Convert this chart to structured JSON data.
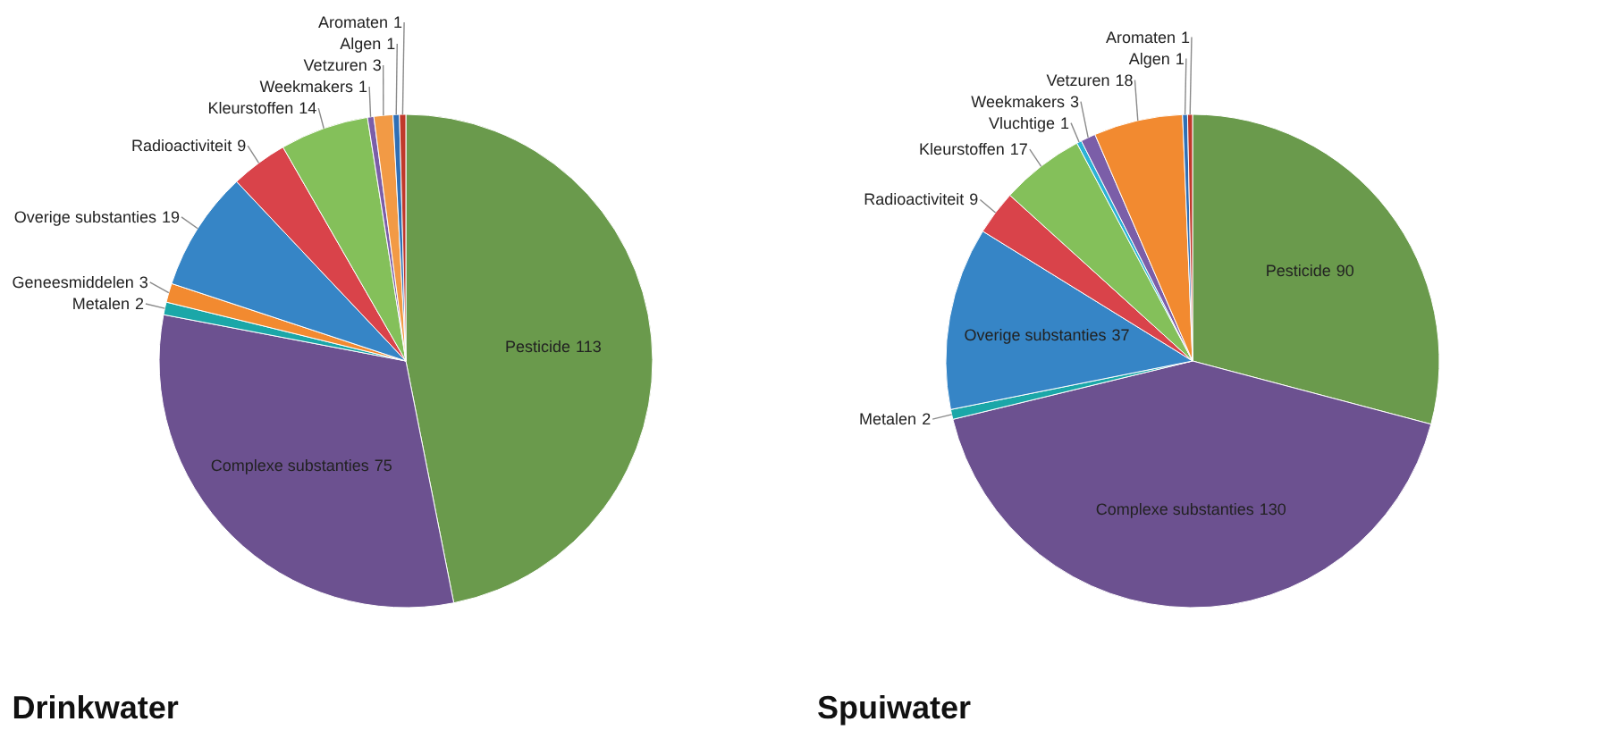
{
  "chart_data": [
    {
      "type": "pie",
      "title": "Drinkwater",
      "categories": [
        "Pesticide",
        "Complexe substanties",
        "Metalen",
        "Geneesmiddelen",
        "Overige substanties",
        "Radioactiviteit",
        "Kleurstoffen",
        "Weekmakers",
        "Vetzuren",
        "Algen",
        "Aromaten"
      ],
      "values": [
        113,
        75,
        2,
        3,
        19,
        9,
        14,
        1,
        3,
        1,
        1
      ],
      "colors": [
        "#6a9a4c",
        "#6c5190",
        "#1ba7a8",
        "#f28a30",
        "#3685c6",
        "#d9434a",
        "#84c05a",
        "#7b5ea8",
        "#f29a45",
        "#2f6fb5",
        "#c0392b"
      ],
      "data_labels": true
    },
    {
      "type": "pie",
      "title": "Spuiwater",
      "categories": [
        "Pesticide",
        "Complexe substanties",
        "Metalen",
        "Overige substanties",
        "Radioactiviteit",
        "Kleurstoffen",
        "Vluchtige",
        "Weekmakers",
        "Vetzuren",
        "Algen",
        "Aromaten"
      ],
      "values": [
        90,
        130,
        2,
        37,
        9,
        17,
        1,
        3,
        18,
        1,
        1
      ],
      "colors": [
        "#6a9a4c",
        "#6c5190",
        "#1ba7a8",
        "#3685c6",
        "#d9434a",
        "#84c05a",
        "#2bb3d6",
        "#7b5ea8",
        "#f28a30",
        "#2f6fb5",
        "#c0392b"
      ],
      "data_labels": true
    }
  ]
}
